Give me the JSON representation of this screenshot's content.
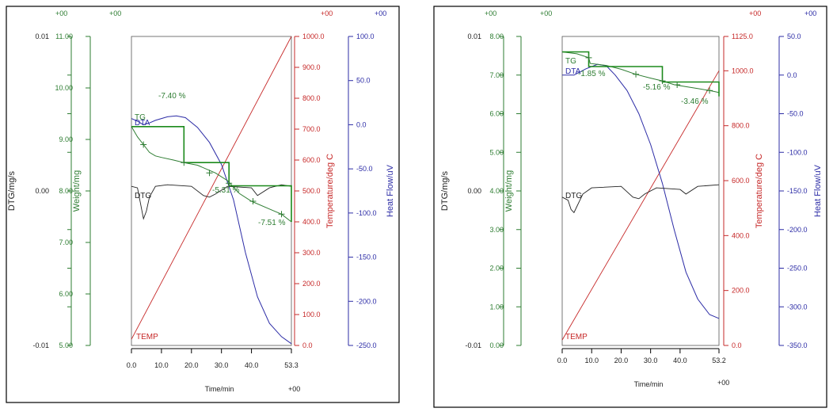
{
  "colors": {
    "green": "#2e7d32",
    "tg_step": "#1b8a1b",
    "red": "#c62828",
    "blue": "#2c2ca6",
    "black": "#222222"
  },
  "chart_data": [
    {
      "type": "line",
      "xlabel": "Time/min",
      "x_ticks": [
        "0.0",
        "10.0",
        "20.0",
        "30.0",
        "40.0",
        "53.3"
      ],
      "xlim": [
        0,
        53.3
      ],
      "corner_labels": {
        "top_left_1": "+00",
        "top_left_2": "+00",
        "top_right_1": "+00",
        "top_right_2": "+00",
        "bottom_right": "+00"
      },
      "axes": {
        "dtg": {
          "label": "DTG/mg/s",
          "ticks": [
            "0.01",
            "0.00",
            "-0.01"
          ],
          "range": [
            -0.01,
            0.01
          ]
        },
        "weight": {
          "label": "Weight/mg",
          "ticks": [
            "11.00",
            "10.00",
            "9.00",
            "8.00",
            "7.00",
            "6.00",
            "5.00"
          ],
          "range": [
            5,
            11
          ]
        },
        "temp": {
          "label": "Temperature/deg C",
          "ticks": [
            "1000.0",
            "900.0",
            "800.0",
            "700.0",
            "600.0",
            "500.0",
            "400.0",
            "300.0",
            "200.0",
            "100.0",
            "0.0"
          ],
          "range": [
            0,
            1000
          ]
        },
        "heat": {
          "label": "Heat Flow/uV",
          "ticks": [
            "100.0",
            "50.0",
            "0.0",
            "-50.0",
            "-100.0",
            "-150.0",
            "-200.0",
            "-250.0"
          ],
          "range": [
            -250,
            100
          ]
        }
      },
      "series_labels": {
        "tg": "TG",
        "dta": "DTA",
        "dtg": "DTG",
        "temp": "TEMP"
      },
      "annotations": [
        "-7.40 %",
        "-5.31 %",
        "-7.51 %"
      ],
      "series": {
        "tg": {
          "x": [
            0,
            2,
            4,
            6,
            8,
            10,
            14,
            17.5,
            22,
            28,
            32,
            36,
            40,
            46,
            50,
            53.3
          ],
          "y": [
            9.25,
            9.05,
            8.9,
            8.75,
            8.68,
            8.65,
            8.6,
            8.55,
            8.5,
            8.35,
            8.2,
            7.95,
            7.8,
            7.65,
            7.55,
            7.4
          ]
        },
        "tg_step": {
          "x": [
            0,
            17.5,
            17.5,
            32.5,
            32.5,
            53.3,
            53.3
          ],
          "y": [
            9.25,
            9.25,
            8.55,
            8.55,
            8.1,
            8.1,
            7.4
          ]
        },
        "dta": {
          "x": [
            0,
            2,
            4,
            6,
            8,
            10,
            12,
            15,
            18,
            22,
            26,
            30,
            34,
            38,
            42,
            46,
            50,
            53.3
          ],
          "y": [
            7,
            4,
            0,
            2,
            5,
            7,
            9,
            10,
            8,
            -3,
            -20,
            -45,
            -85,
            -145,
            -195,
            -225,
            -240,
            -248
          ]
        },
        "dtg": {
          "x": [
            0,
            2,
            3,
            4,
            5,
            6,
            8,
            12,
            20,
            24,
            26,
            28,
            32,
            40,
            42,
            46,
            50,
            53.3
          ],
          "y": [
            0.0003,
            0.0002,
            -0.0008,
            -0.0018,
            -0.0013,
            -0.0004,
            0.0003,
            0.0004,
            0.0003,
            -0.0003,
            -0.0004,
            -0.0002,
            0.0003,
            0.0002,
            -0.0003,
            0.0002,
            0.0004,
            0.0003
          ]
        },
        "temp": {
          "x": [
            0,
            53.3
          ],
          "y": [
            20,
            1000
          ]
        }
      },
      "markers": [
        [
          4,
          8.9
        ],
        [
          17.5,
          8.55
        ],
        [
          26,
          8.35
        ],
        [
          32.5,
          8.15
        ],
        [
          40.5,
          7.8
        ],
        [
          50,
          7.55
        ]
      ]
    },
    {
      "type": "line",
      "xlabel": "Time/min",
      "x_ticks": [
        "0.0",
        "10.0",
        "20.0",
        "30.0",
        "40.0",
        "53.2"
      ],
      "xlim": [
        0,
        53.2
      ],
      "corner_labels": {
        "top_left_1": "+00",
        "top_left_2": "+00",
        "top_right_1": "+00",
        "top_right_2": "+00",
        "bottom_right": "+00"
      },
      "axes": {
        "dtg": {
          "label": "DTG/mg/s",
          "ticks": [
            "0.01",
            "0.00",
            "-0.01"
          ],
          "range": [
            -0.01,
            0.01
          ]
        },
        "weight": {
          "label": "Weight/mg",
          "ticks": [
            "8.00",
            "7.00",
            "6.00",
            "5.00",
            "4.00",
            "3.00",
            "2.00",
            "1.00",
            "0.00"
          ],
          "range": [
            0,
            8
          ]
        },
        "temp": {
          "label": "Temperature/deg C",
          "ticks": [
            "1125.0",
            "1000.0",
            "800.0",
            "600.0",
            "400.0",
            "200.0",
            "0.0"
          ],
          "tick_values": [
            1125,
            1000,
            800,
            600,
            400,
            200,
            0
          ],
          "range": [
            0,
            1125
          ]
        },
        "heat": {
          "label": "Heat Flow/uV",
          "ticks": [
            "50.0",
            "0.0",
            "-50.0",
            "-100.0",
            "-150.0",
            "-200.0",
            "-250.0",
            "-300.0",
            "-350.0"
          ],
          "range": [
            -350,
            50
          ]
        }
      },
      "series_labels": {
        "tg": "TG",
        "dta": "DTA",
        "dtg": "DTG",
        "temp": "TEMP"
      },
      "annotations": [
        "-1.85 %",
        "-5.16 %",
        "-3.46 %"
      ],
      "series": {
        "tg": {
          "x": [
            0,
            5,
            9,
            9.5,
            15,
            20,
            25,
            30,
            34,
            38,
            42,
            46,
            50,
            53.2
          ],
          "y": [
            7.6,
            7.55,
            7.45,
            7.3,
            7.25,
            7.15,
            7.02,
            6.92,
            6.85,
            6.75,
            6.7,
            6.65,
            6.6,
            6.55
          ]
        },
        "tg_step": {
          "x": [
            0,
            9,
            9,
            34,
            34,
            53.2,
            53.2
          ],
          "y": [
            7.6,
            7.6,
            7.22,
            7.22,
            6.82,
            6.82,
            6.45
          ]
        },
        "dta": {
          "x": [
            0,
            4,
            8,
            12,
            15,
            18,
            22,
            26,
            30,
            34,
            38,
            42,
            46,
            50,
            53.2
          ],
          "y": [
            0,
            0,
            8,
            14,
            12,
            0,
            -20,
            -50,
            -90,
            -140,
            -200,
            -255,
            -290,
            -310,
            -315
          ]
        },
        "dtg": {
          "x": [
            0,
            2,
            3,
            4,
            5,
            7,
            10,
            20,
            24,
            26,
            28,
            32,
            40,
            42,
            46,
            53.2
          ],
          "y": [
            -0.0004,
            -0.0006,
            -0.0012,
            -0.0014,
            -0.001,
            -0.0002,
            0.0002,
            0.0003,
            -0.0004,
            -0.0005,
            -0.0002,
            0.0002,
            0.0001,
            -0.0002,
            0.0003,
            0.0004
          ]
        },
        "temp": {
          "x": [
            0,
            53.2
          ],
          "y": [
            20,
            1000
          ]
        }
      },
      "markers": [
        [
          9,
          7.45
        ],
        [
          25,
          7.02
        ],
        [
          34,
          6.85
        ],
        [
          39,
          6.75
        ],
        [
          50,
          6.6
        ]
      ]
    }
  ]
}
